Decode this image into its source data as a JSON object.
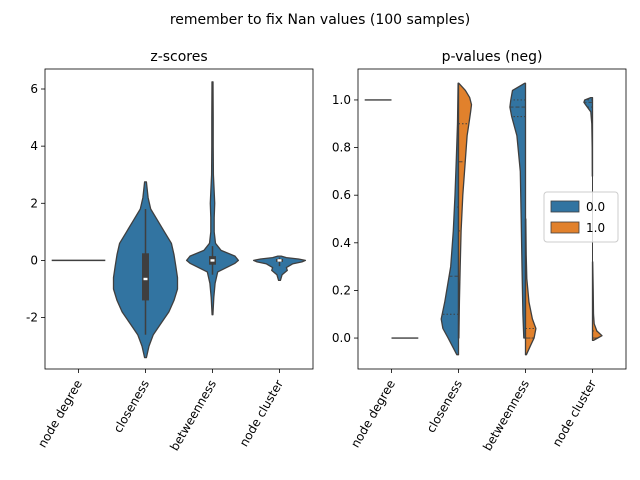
{
  "figure": {
    "suptitle": "remember to fix Nan values (100 samples)"
  },
  "colors": {
    "series_0": "#3274a1",
    "series_1": "#e1812c",
    "outline": "#3f3f3f",
    "box": "#3f3f3f",
    "median": "#ffffff"
  },
  "chart_data": [
    {
      "type": "violin",
      "title": "z-scores",
      "categories": [
        "node degree",
        "closeness",
        "betweenness",
        "node cluster"
      ],
      "yticks": [
        -2,
        0,
        2,
        4,
        6
      ],
      "ylim": [
        -3.8,
        6.7
      ],
      "grid": false,
      "violins": [
        {
          "category": "node degree",
          "kind": "flat",
          "value": 0
        },
        {
          "category": "closeness",
          "kind": "kde",
          "min": -3.4,
          "max": 2.75,
          "profile": [
            [
              -3.4,
              0.01
            ],
            [
              -3.0,
              0.04
            ],
            [
              -2.6,
              0.09
            ],
            [
              -2.2,
              0.18
            ],
            [
              -1.8,
              0.27
            ],
            [
              -1.4,
              0.33
            ],
            [
              -1.0,
              0.37
            ],
            [
              -0.6,
              0.37
            ],
            [
              -0.2,
              0.35
            ],
            [
              0.2,
              0.33
            ],
            [
              0.6,
              0.3
            ],
            [
              1.0,
              0.22
            ],
            [
              1.4,
              0.14
            ],
            [
              1.8,
              0.06
            ],
            [
              2.2,
              0.03
            ],
            [
              2.75,
              0.01
            ]
          ],
          "q1": -1.4,
          "median": -0.65,
          "q3": 0.25,
          "whisker_low": -2.6,
          "whisker_high": 1.8
        },
        {
          "category": "betweenness",
          "kind": "kde",
          "min": -1.9,
          "max": 6.25,
          "profile": [
            [
              -1.9,
              0.005
            ],
            [
              -1.3,
              0.015
            ],
            [
              -0.8,
              0.03
            ],
            [
              -0.4,
              0.06
            ],
            [
              -0.1,
              0.26
            ],
            [
              0.0,
              0.3
            ],
            [
              0.15,
              0.26
            ],
            [
              0.35,
              0.1
            ],
            [
              0.6,
              0.035
            ],
            [
              1.0,
              0.02
            ],
            [
              1.5,
              0.02
            ],
            [
              2.0,
              0.025
            ],
            [
              2.4,
              0.02
            ],
            [
              3.0,
              0.01
            ],
            [
              4.0,
              0.008
            ],
            [
              5.0,
              0.008
            ],
            [
              6.25,
              0.006
            ]
          ],
          "q1": -0.15,
          "median": 0.0,
          "q3": 0.15,
          "whisker_low": -0.5,
          "whisker_high": 0.5
        },
        {
          "category": "node cluster",
          "kind": "kde",
          "min": -0.7,
          "max": 0.15,
          "profile": [
            [
              -0.7,
              0.01
            ],
            [
              -0.5,
              0.03
            ],
            [
              -0.35,
              0.09
            ],
            [
              -0.25,
              0.08
            ],
            [
              -0.12,
              0.15
            ],
            [
              -0.05,
              0.26
            ],
            [
              0.0,
              0.3
            ],
            [
              0.05,
              0.22
            ],
            [
              0.1,
              0.08
            ],
            [
              0.15,
              0.02
            ]
          ],
          "q1": -0.05,
          "median": 0.0,
          "q3": 0.05,
          "whisker_low": -0.2,
          "whisker_high": 0.1
        }
      ]
    },
    {
      "type": "violin",
      "split": true,
      "title": "p-values (neg)",
      "categories": [
        "node degree",
        "closeness",
        "betweenness",
        "node cluster"
      ],
      "yticks": [
        0.0,
        0.2,
        0.4,
        0.6,
        0.8,
        1.0
      ],
      "ylim": [
        -0.13,
        1.13
      ],
      "grid": false,
      "legend": {
        "placement": "center-right",
        "entries": [
          "0.0",
          "1.0"
        ]
      },
      "series": [
        {
          "name": "0.0",
          "violins": [
            {
              "category": "node degree",
              "kind": "flat",
              "value": 1.0
            },
            {
              "category": "closeness",
              "kind": "kde",
              "min": -0.07,
              "max": 1.07,
              "profile": [
                [
                  -0.07,
                  0.02
                ],
                [
                  0.0,
                  0.12
                ],
                [
                  0.04,
                  0.18
                ],
                [
                  0.08,
                  0.2
                ],
                [
                  0.15,
                  0.16
                ],
                [
                  0.3,
                  0.09
                ],
                [
                  0.45,
                  0.06
                ],
                [
                  0.6,
                  0.04
                ],
                [
                  0.75,
                  0.025
                ],
                [
                  0.9,
                  0.012
                ],
                [
                  1.07,
                  0.005
                ]
              ],
              "quartiles": [
                0.1,
                0.26,
                0.55
              ]
            },
            {
              "category": "betweenness",
              "kind": "kde",
              "min": 0.0,
              "max": 1.07,
              "profile": [
                [
                  0.0,
                  0.02
                ],
                [
                  0.1,
                  0.03
                ],
                [
                  0.3,
                  0.04
                ],
                [
                  0.5,
                  0.05
                ],
                [
                  0.7,
                  0.06
                ],
                [
                  0.85,
                  0.1
                ],
                [
                  0.93,
                  0.16
                ],
                [
                  0.97,
                  0.18
                ],
                [
                  1.0,
                  0.17
                ],
                [
                  1.04,
                  0.15
                ],
                [
                  1.07,
                  0.01
                ]
              ],
              "quartiles": [
                0.93,
                0.97,
                1.0
              ]
            },
            {
              "category": "node cluster",
              "kind": "kde",
              "min": 0.68,
              "max": 1.01,
              "profile": [
                [
                  0.68,
                  0.002
                ],
                [
                  0.8,
                  0.004
                ],
                [
                  0.9,
                  0.008
                ],
                [
                  0.95,
                  0.02
                ],
                [
                  0.98,
                  0.08
                ],
                [
                  0.99,
                  0.1
                ],
                [
                  1.0,
                  0.09
                ],
                [
                  1.01,
                  0.02
                ]
              ],
              "quartiles": [
                0.97,
                0.99,
                1.0
              ]
            }
          ]
        },
        {
          "name": "1.0",
          "violins": [
            {
              "category": "node degree",
              "kind": "flat",
              "value": 0.0
            },
            {
              "category": "closeness",
              "kind": "kde",
              "min": 0.0,
              "max": 1.07,
              "profile": [
                [
                  0.0,
                  0.005
                ],
                [
                  0.15,
                  0.01
                ],
                [
                  0.3,
                  0.02
                ],
                [
                  0.45,
                  0.03
                ],
                [
                  0.6,
                  0.05
                ],
                [
                  0.75,
                  0.08
                ],
                [
                  0.85,
                  0.1
                ],
                [
                  0.9,
                  0.12
                ],
                [
                  0.95,
                  0.14
                ],
                [
                  0.98,
                  0.15
                ],
                [
                  1.01,
                  0.13
                ],
                [
                  1.04,
                  0.08
                ],
                [
                  1.07,
                  0.005
                ]
              ],
              "quartiles": [
                0.45,
                0.74,
                0.9
              ]
            },
            {
              "category": "betweenness",
              "kind": "kde",
              "min": -0.07,
              "max": 0.5,
              "profile": [
                [
                  -0.07,
                  0.01
                ],
                [
                  -0.03,
                  0.06
                ],
                [
                  0.0,
                  0.1
                ],
                [
                  0.04,
                  0.12
                ],
                [
                  0.08,
                  0.08
                ],
                [
                  0.15,
                  0.04
                ],
                [
                  0.25,
                  0.015
                ],
                [
                  0.35,
                  0.008
                ],
                [
                  0.5,
                  0.004
                ]
              ],
              "quartiles": [
                0.0,
                0.0,
                0.04
              ]
            },
            {
              "category": "node cluster",
              "kind": "kde",
              "min": -0.01,
              "max": 0.32,
              "profile": [
                [
                  -0.01,
                  0.01
                ],
                [
                  0.0,
                  0.06
                ],
                [
                  0.01,
                  0.11
                ],
                [
                  0.03,
                  0.05
                ],
                [
                  0.06,
                  0.02
                ],
                [
                  0.1,
                  0.012
                ],
                [
                  0.2,
                  0.008
                ],
                [
                  0.32,
                  0.002
                ]
              ],
              "quartiles": [
                0.0,
                0.0,
                0.03
              ]
            }
          ]
        }
      ]
    }
  ]
}
